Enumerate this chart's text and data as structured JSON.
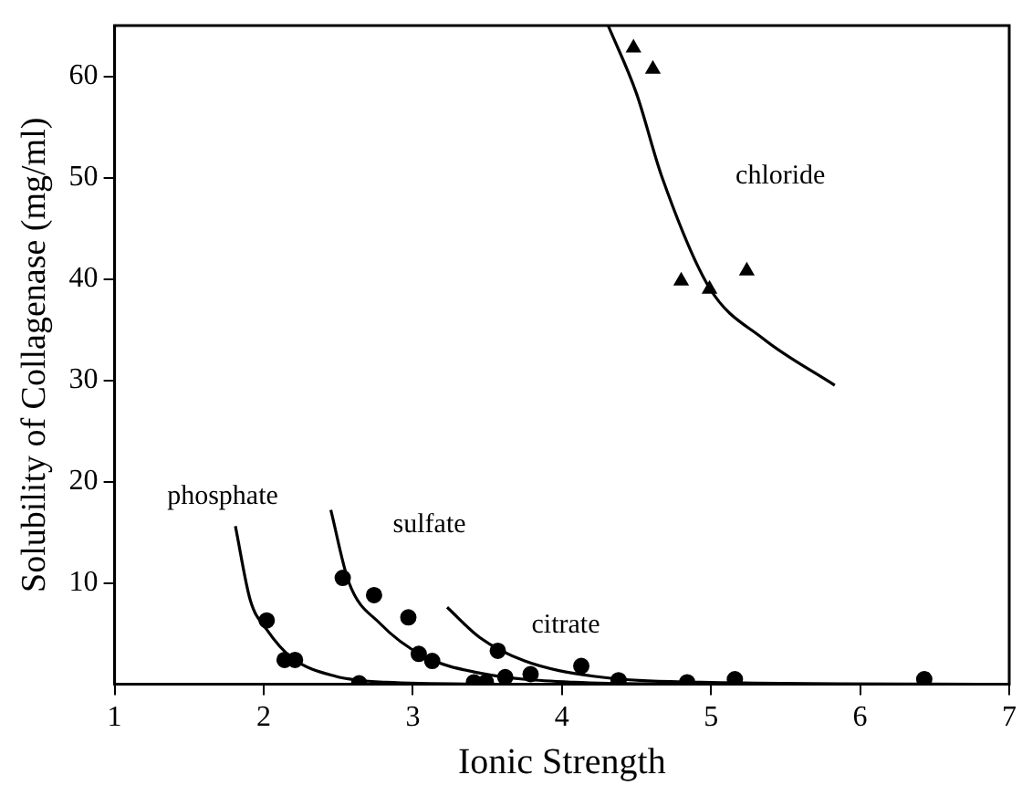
{
  "chart_data": {
    "type": "scatter",
    "xlabel": "Ionic Strength",
    "ylabel": "Solubility of Collagenase (mg/ml)",
    "xlim": [
      1,
      7
    ],
    "xticks": [
      1,
      2,
      3,
      4,
      5,
      6,
      7
    ],
    "ylim": [
      0,
      65
    ],
    "yticks": [
      10,
      20,
      30,
      40,
      50,
      60
    ],
    "grid": false,
    "legend": false,
    "series": [
      {
        "type": "scatter",
        "marker": "triangle",
        "color": "#000000",
        "x": [
          4.48,
          4.61,
          4.8,
          4.99,
          5.24
        ],
        "values": [
          62.8,
          60.7,
          39.8,
          39.0,
          40.8
        ]
      },
      {
        "type": "line",
        "name": "chloride",
        "marker": "none",
        "color": "#000000",
        "x": [
          4.31,
          4.5,
          4.67,
          4.99,
          5.35,
          5.83
        ],
        "values": [
          65,
          58.3,
          50.1,
          39.1,
          34.1,
          29.5
        ]
      },
      {
        "type": "scatter",
        "marker": "circle",
        "color": "#000000",
        "x": [
          2.02,
          2.14,
          2.21,
          2.64,
          3.41,
          3.49
        ],
        "values": [
          6.3,
          2.4,
          2.4,
          0.1,
          0.2,
          0.2
        ]
      },
      {
        "type": "line",
        "name": "phosphate",
        "marker": "none",
        "color": "#000000",
        "x": [
          1.81,
          1.91,
          2.02,
          2.19,
          2.48,
          2.82,
          3.6
        ],
        "values": [
          15.6,
          8.3,
          5.4,
          2.6,
          0.8,
          0.2,
          0
        ]
      },
      {
        "type": "scatter",
        "marker": "circle",
        "color": "#000000",
        "x": [
          2.53,
          2.74,
          2.97,
          3.04,
          3.13,
          3.62,
          3.79,
          4.38,
          4.84
        ],
        "values": [
          10.5,
          8.8,
          6.6,
          3.0,
          2.3,
          0.7,
          1.0,
          0.4,
          0.2
        ]
      },
      {
        "type": "line",
        "name": "sulfate",
        "marker": "none",
        "color": "#000000",
        "x": [
          2.45,
          2.57,
          2.78,
          3.07,
          3.45,
          4.08,
          4.9
        ],
        "values": [
          17.2,
          10.1,
          6.0,
          2.8,
          1.1,
          0.2,
          0
        ]
      },
      {
        "type": "scatter",
        "marker": "circle",
        "color": "#000000",
        "x": [
          3.57,
          4.13,
          5.16,
          6.43
        ],
        "values": [
          3.3,
          1.8,
          0.5,
          0.5
        ]
      },
      {
        "type": "line",
        "name": "citrate",
        "marker": "none",
        "color": "#000000",
        "x": [
          3.23,
          3.45,
          3.75,
          4.21,
          4.93,
          6.95
        ],
        "values": [
          7.6,
          4.6,
          2.3,
          0.8,
          0.2,
          0
        ]
      }
    ]
  }
}
